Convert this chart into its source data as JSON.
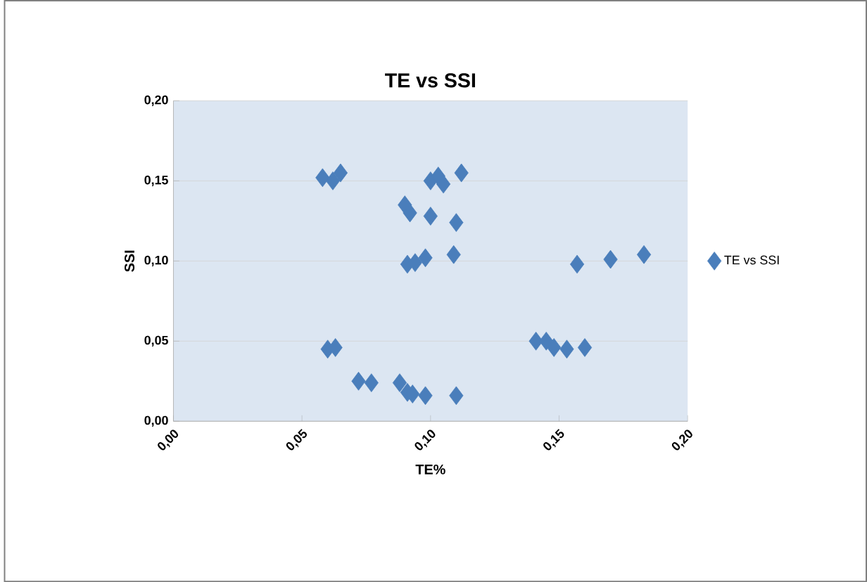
{
  "chart_data": {
    "type": "scatter",
    "title": "TE vs SSI",
    "xlabel": "TE%",
    "ylabel": "SSI",
    "xlim": [
      0,
      0.2
    ],
    "ylim": [
      0,
      0.2
    ],
    "xticks": [
      {
        "value": 0,
        "label": "0,00"
      },
      {
        "value": 0.05,
        "label": "0,05"
      },
      {
        "value": 0.1,
        "label": "0,10"
      },
      {
        "value": 0.15,
        "label": "0,15"
      },
      {
        "value": 0.2,
        "label": "0,20"
      }
    ],
    "yticks": [
      {
        "value": 0,
        "label": "0,00"
      },
      {
        "value": 0.05,
        "label": "0,05"
      },
      {
        "value": 0.1,
        "label": "0,10"
      },
      {
        "value": 0.15,
        "label": "0,15"
      },
      {
        "value": 0.2,
        "label": "0,20"
      }
    ],
    "grid": "y",
    "legend": "right",
    "marker": "diamond",
    "series": [
      {
        "name": "TE vs SSI",
        "color": "#4a7ebb",
        "x": [
          0.058,
          0.062,
          0.065,
          0.06,
          0.063,
          0.072,
          0.077,
          0.088,
          0.091,
          0.093,
          0.098,
          0.11,
          0.09,
          0.092,
          0.1,
          0.11,
          0.1,
          0.103,
          0.105,
          0.112,
          0.091,
          0.094,
          0.098,
          0.109,
          0.141,
          0.145,
          0.148,
          0.153,
          0.16,
          0.157,
          0.17,
          0.183
        ],
        "values": [
          0.152,
          0.15,
          0.155,
          0.045,
          0.046,
          0.025,
          0.024,
          0.024,
          0.018,
          0.017,
          0.016,
          0.016,
          0.135,
          0.13,
          0.128,
          0.124,
          0.15,
          0.153,
          0.148,
          0.155,
          0.098,
          0.099,
          0.102,
          0.104,
          0.05,
          0.05,
          0.046,
          0.045,
          0.046,
          0.098,
          0.101,
          0.104
        ]
      }
    ]
  }
}
